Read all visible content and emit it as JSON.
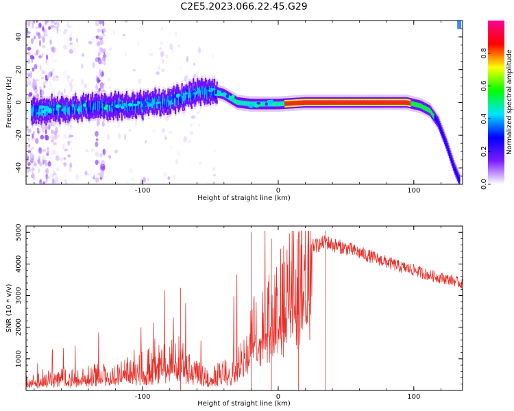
{
  "chart_data": [
    {
      "type": "heatmap",
      "title": "C2E5.2023.066.22.45.G29",
      "xlabel": "Height of straight line (km)",
      "ylabel": "Frequency (Hz)",
      "xlim": [
        -186,
        136
      ],
      "ylim": [
        -50,
        50
      ],
      "x_ticks": [
        -100,
        0,
        100
      ],
      "y_ticks": [
        -40,
        -20,
        0,
        20,
        40
      ],
      "colorbar": {
        "label": "Normalized spectral amplitude",
        "range": [
          0,
          1
        ],
        "ticks": [
          "0.0",
          "0.2",
          "0.4",
          "0.6",
          "0.8"
        ],
        "colormap": [
          "#ffffff",
          "#7a1cff",
          "#0000ff",
          "#00e5ff",
          "#00ff00",
          "#ffff00",
          "#ff0000",
          "#ff0090"
        ]
      },
      "ridge": {
        "x": [
          -180,
          -160,
          -140,
          -120,
          -100,
          -80,
          -60,
          -48,
          -40,
          -30,
          -20,
          -10,
          0,
          20,
          40,
          60,
          80,
          95,
          105,
          112,
          118,
          124,
          130,
          134
        ],
        "y": [
          -5,
          -4,
          -3,
          -2,
          -2,
          1,
          6,
          7,
          5,
          0,
          -1,
          -1,
          -1,
          0,
          0,
          0,
          0,
          0,
          -2,
          -5,
          -12,
          -25,
          -40,
          -48
        ]
      }
    },
    {
      "type": "line",
      "title": "",
      "xlabel": "Height of straight line (km)",
      "ylabel": "SNR (10 * v/v)",
      "xlim": [
        -186,
        136
      ],
      "ylim": [
        0,
        5200
      ],
      "x_ticks": [
        -100,
        0,
        100
      ],
      "y_ticks": [
        1000,
        2000,
        3000,
        4000,
        5000
      ],
      "color": "#e8302a",
      "series": [
        {
          "x": [
            -186,
            -170,
            -160,
            -150,
            -140,
            -130,
            -120,
            -110,
            -100,
            -90,
            -80,
            -72,
            -65,
            -55,
            -45,
            -35,
            -25,
            -20,
            -15,
            -10,
            -5,
            0,
            5,
            10,
            15,
            20,
            25,
            30,
            35,
            40,
            50,
            60,
            70,
            80,
            90,
            100,
            110,
            120,
            130,
            136
          ],
          "values": [
            300,
            350,
            500,
            400,
            500,
            550,
            500,
            700,
            800,
            900,
            1000,
            1200,
            700,
            600,
            550,
            700,
            1500,
            2200,
            2600,
            2800,
            3200,
            3500,
            3900,
            4200,
            4400,
            4500,
            4600,
            4650,
            4750,
            4650,
            4550,
            4400,
            4250,
            4100,
            3950,
            3850,
            3700,
            3600,
            3500,
            3400
          ]
        }
      ]
    }
  ]
}
